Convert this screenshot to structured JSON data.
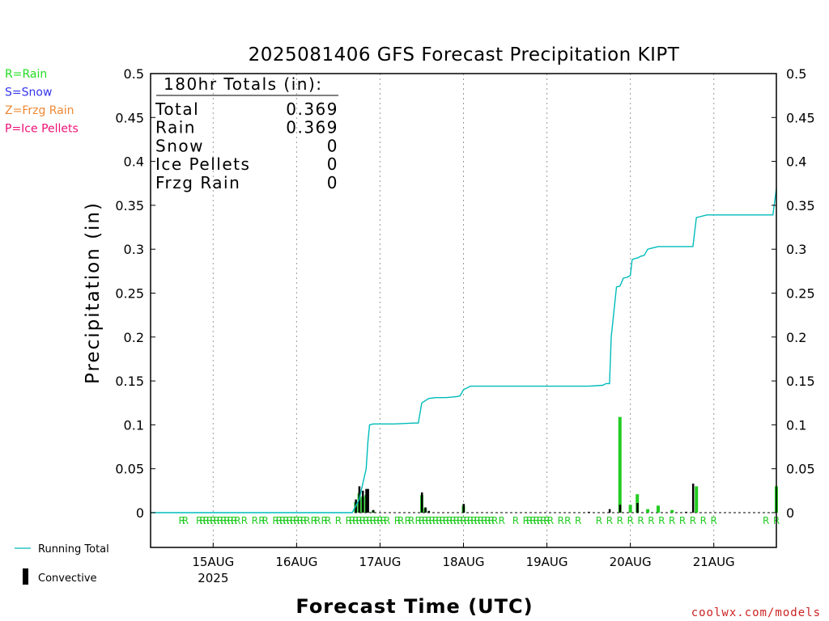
{
  "chart_data": {
    "type": "bar",
    "title": "2025081406 GFS Forecast Precipitation KIPT",
    "ylabel": "Precipitation (in)",
    "xlabel": "Forecast Time (UTC)",
    "ylim": [
      0,
      0.5
    ],
    "y_ticks": [
      "0",
      "0.05",
      "0.1",
      "0.15",
      "0.2",
      "0.25",
      "0.3",
      "0.35",
      "0.4",
      "0.45",
      "0.5"
    ],
    "x_hour_range": [
      0,
      180
    ],
    "x_ticks": [
      {
        "hour": 18,
        "label": "15AUG",
        "sublabel": "2025"
      },
      {
        "hour": 42,
        "label": "16AUG",
        "sublabel": ""
      },
      {
        "hour": 66,
        "label": "17AUG",
        "sublabel": ""
      },
      {
        "hour": 90,
        "label": "18AUG",
        "sublabel": ""
      },
      {
        "hour": 114,
        "label": "19AUG",
        "sublabel": ""
      },
      {
        "hour": 138,
        "label": "20AUG",
        "sublabel": ""
      },
      {
        "hour": 162,
        "label": "21AUG",
        "sublabel": ""
      }
    ],
    "grid": "vertical-dotted",
    "type_key": [
      {
        "text": "R=Rain",
        "color": "#22dd22"
      },
      {
        "text": "S=Snow",
        "color": "#3333ee"
      },
      {
        "text": "Z=Frzg Rain",
        "color": "#ee8833"
      },
      {
        "text": "P=Ice Pellets",
        "color": "#ee1177"
      }
    ],
    "totals_box": {
      "heading": "180hr Totals (in):",
      "rows": [
        {
          "label": "Total",
          "value": "0.369"
        },
        {
          "label": "Rain",
          "value": "0.369"
        },
        {
          "label": "Snow",
          "value": "0"
        },
        {
          "label": "Ice Pellets",
          "value": "0"
        },
        {
          "label": "Frzg Rain",
          "value": "0"
        }
      ]
    },
    "series": [
      {
        "name": "Running Total",
        "color": "#00bbbb",
        "x": [
          0,
          58,
          60,
          62,
          62.5,
          63,
          64,
          66,
          70,
          76,
          77,
          78,
          80,
          82,
          84,
          85,
          88,
          89,
          90,
          92,
          100,
          120,
          126,
          130,
          131,
          132,
          132.5,
          134,
          135,
          136,
          137,
          138,
          138.5,
          139,
          140,
          141,
          142,
          143,
          144,
          146,
          150,
          156,
          157,
          158,
          159,
          160,
          166,
          168,
          175,
          179,
          180
        ],
        "values": [
          0,
          0,
          0.015,
          0.05,
          0.08,
          0.1,
          0.101,
          0.101,
          0.101,
          0.102,
          0.102,
          0.125,
          0.13,
          0.131,
          0.131,
          0.131,
          0.132,
          0.133,
          0.14,
          0.144,
          0.144,
          0.144,
          0.144,
          0.145,
          0.147,
          0.147,
          0.2,
          0.257,
          0.258,
          0.267,
          0.268,
          0.27,
          0.288,
          0.289,
          0.29,
          0.292,
          0.293,
          0.3,
          0.301,
          0.303,
          0.303,
          0.303,
          0.336,
          0.337,
          0.338,
          0.339,
          0.339,
          0.339,
          0.339,
          0.339,
          0.369
        ]
      },
      {
        "name": "Convective",
        "color": "#000000",
        "x": [
          59,
          60,
          61,
          62,
          62.5,
          64,
          78,
          79,
          80,
          90,
          126,
          132,
          135,
          140,
          154,
          156
        ],
        "values": [
          0.015,
          0.03,
          0.025,
          0.027,
          0.027,
          0.003,
          0.023,
          0.006,
          0.002,
          0.01,
          0.001,
          0.004,
          0.009,
          0.011,
          0.001,
          0.033
        ]
      },
      {
        "name": "Rain",
        "color": "#22cc22",
        "x": [
          59,
          60,
          61,
          62,
          64,
          78,
          79,
          90,
          135,
          138,
          140,
          143,
          146,
          150,
          157,
          180
        ],
        "values": [
          0.012,
          0.022,
          0.018,
          0.02,
          0.002,
          0.02,
          0.005,
          0.008,
          0.109,
          0.009,
          0.021,
          0.004,
          0.008,
          0.003,
          0.03,
          0.03
        ]
      }
    ],
    "ptype_marks": {
      "symbol": "R",
      "hours": [
        9,
        10,
        14,
        15,
        16,
        17,
        18,
        19,
        20,
        21,
        22,
        23,
        24,
        25,
        27,
        30,
        32,
        33,
        36,
        37,
        38,
        39,
        40,
        41,
        42,
        43,
        44,
        45,
        47,
        48,
        50,
        51,
        54,
        57,
        58,
        59,
        60,
        61,
        62,
        63,
        64,
        65,
        66,
        67,
        68,
        71,
        72,
        74,
        75,
        77,
        78,
        79,
        80,
        81,
        82,
        83,
        84,
        85,
        86,
        87,
        88,
        89,
        90,
        91,
        92,
        93,
        94,
        95,
        96,
        97,
        98,
        99,
        101,
        105,
        108,
        109,
        110,
        111,
        112,
        113,
        114,
        115,
        118,
        120,
        123,
        129,
        132,
        135,
        138,
        141,
        144,
        147,
        150,
        153,
        156,
        159,
        162,
        177,
        180
      ]
    },
    "legend": [
      {
        "name": "Running Total",
        "kind": "line",
        "color": "#00bbbb"
      },
      {
        "name": "Convective",
        "kind": "bar",
        "color": "#000000"
      }
    ],
    "credit": "coolwx.com/models"
  }
}
